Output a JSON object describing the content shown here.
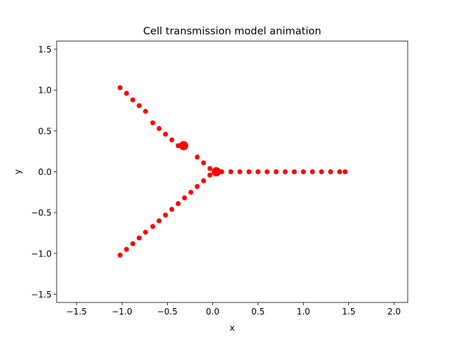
{
  "chart_data": {
    "type": "scatter",
    "title": "Cell transmission model animation",
    "xlabel": "x",
    "ylabel": "y",
    "xlim": [
      -1.72,
      2.15
    ],
    "ylim": [
      -1.6,
      1.6
    ],
    "xticks": [
      -1.5,
      -1.0,
      -0.5,
      0.0,
      0.5,
      1.0,
      1.5,
      2.0
    ],
    "xtick_labels": [
      "−1.5",
      "−1.0",
      "−0.5",
      "0.0",
      "0.5",
      "1.0",
      "1.5",
      "2.0"
    ],
    "yticks": [
      -1.5,
      -1.0,
      -0.5,
      0.0,
      0.5,
      1.0,
      1.5
    ],
    "ytick_labels": [
      "−1.5",
      "−1.0",
      "−0.5",
      "0.0",
      "0.5",
      "1.0",
      "1.5"
    ],
    "grid": false,
    "color": "#ff0000",
    "series": [
      {
        "marker": "small",
        "x": [
          -1.02,
          -0.95,
          -0.88,
          -0.81,
          -0.74,
          -0.66,
          -0.59,
          -0.52,
          -0.45,
          -0.38,
          -0.17,
          -0.1,
          -0.03,
          0.1,
          0.2,
          0.3,
          0.4,
          0.5,
          0.6,
          0.7,
          0.8,
          0.9,
          1.0,
          1.1,
          1.2,
          1.3,
          1.4,
          1.46,
          -0.03,
          -0.1,
          -0.17,
          -0.24,
          -0.31,
          -0.38,
          -0.45,
          -0.52,
          -0.59,
          -0.66,
          -0.74,
          -0.81,
          -0.88,
          -0.95,
          -1.02
        ],
        "y": [
          1.03,
          0.96,
          0.88,
          0.81,
          0.74,
          0.6,
          0.53,
          0.46,
          0.39,
          0.32,
          0.18,
          0.11,
          0.04,
          0.0,
          0.0,
          0.0,
          0.0,
          0.0,
          0.0,
          0.0,
          0.0,
          0.0,
          0.0,
          0.0,
          0.0,
          0.0,
          0.0,
          0.0,
          -0.04,
          -0.11,
          -0.18,
          -0.25,
          -0.32,
          -0.39,
          -0.46,
          -0.53,
          -0.6,
          -0.67,
          -0.74,
          -0.81,
          -0.88,
          -0.95,
          -1.02
        ]
      },
      {
        "marker": "large",
        "x": [
          -0.32,
          0.04
        ],
        "y": [
          0.32,
          0.0
        ]
      }
    ]
  }
}
